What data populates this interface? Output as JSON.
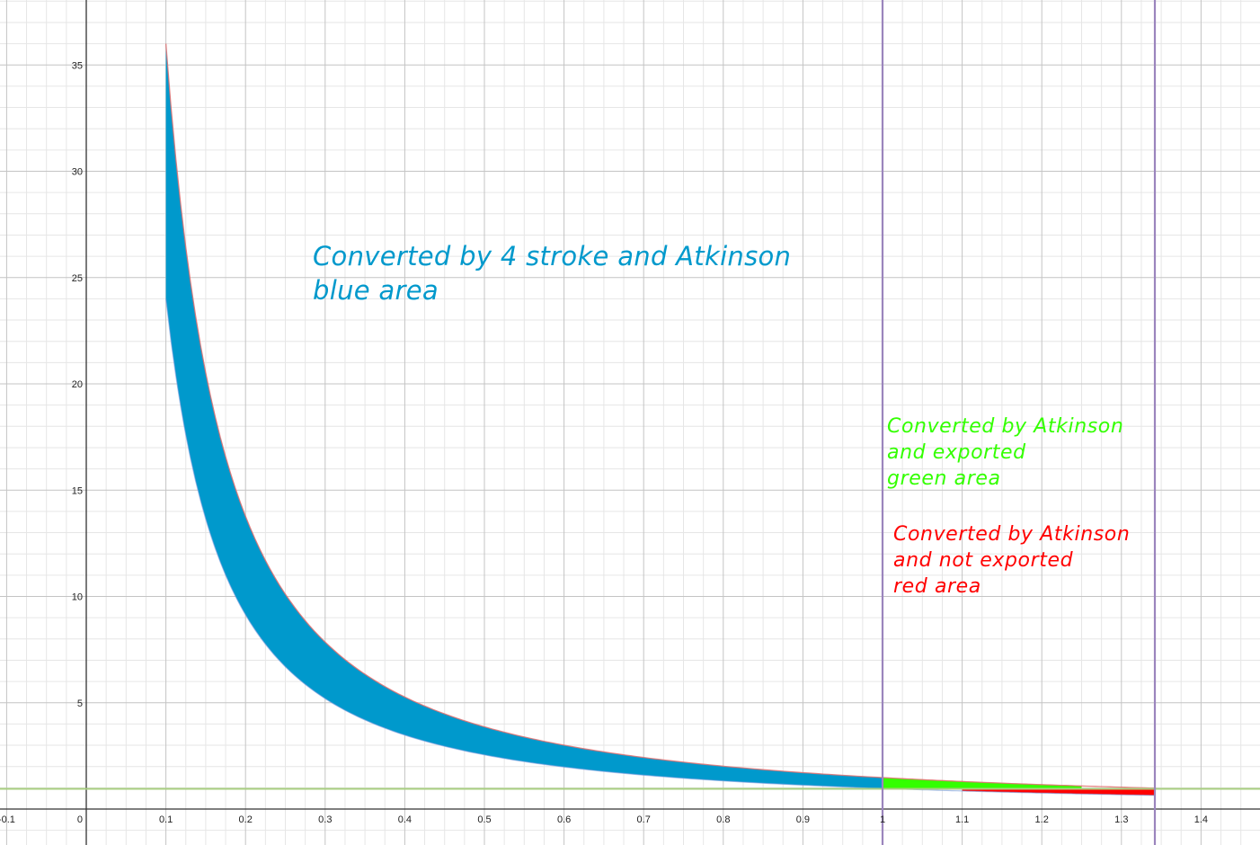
{
  "chart_data": {
    "type": "area",
    "title": "",
    "xlabel": "",
    "ylabel": "",
    "xlim": [
      -0.1,
      1.48
    ],
    "ylim": [
      -1.7,
      38
    ],
    "grid": true,
    "x_ticks": [
      "-0.1",
      "0",
      "0.1",
      "0.2",
      "0.3",
      "0.4",
      "0.5",
      "0.6",
      "0.7",
      "0.8",
      "0.9",
      "1",
      "1.1",
      "1.2",
      "1.3",
      "1.4"
    ],
    "x_tick_values": [
      -0.1,
      0,
      0.1,
      0.2,
      0.3,
      0.4,
      0.5,
      0.6,
      0.7,
      0.8,
      0.9,
      1,
      1.1,
      1.2,
      1.3,
      1.4
    ],
    "y_ticks": [
      "5",
      "10",
      "15",
      "20",
      "25",
      "30",
      "35"
    ],
    "y_tick_values": [
      5,
      10,
      15,
      20,
      25,
      30,
      35
    ],
    "curves": {
      "upper": {
        "description": "upper boundary ~ 1.48 * x^-1.39",
        "color": "#e07070",
        "x": [
          0.1,
          0.2,
          0.3,
          0.4,
          0.5,
          0.6,
          0.7,
          0.8,
          0.9,
          1.0,
          1.1,
          1.2,
          1.3,
          1.342
        ],
        "y": [
          36.0,
          13.8,
          7.9,
          5.3,
          3.9,
          3.0,
          2.42,
          2.01,
          1.71,
          1.48,
          1.3,
          1.15,
          1.03,
          0.98
        ]
      },
      "lower": {
        "description": "lower boundary ~ 0.97 * x^-1.39",
        "color": "#7799dd",
        "x": [
          0.1,
          0.2,
          0.3,
          0.4,
          0.5,
          0.6,
          0.7,
          0.8,
          0.9,
          1.0,
          1.1,
          1.2,
          1.3,
          1.342
        ],
        "y": [
          24.0,
          9.2,
          5.2,
          3.5,
          2.55,
          1.97,
          1.59,
          1.32,
          1.12,
          0.97,
          0.85,
          0.75,
          0.67,
          0.64
        ]
      }
    },
    "horizontal_line": {
      "y": 0.95,
      "color": "#a8cf80"
    },
    "vertical_lines": [
      {
        "x": 1.0,
        "color": "#9b85bd"
      },
      {
        "x": 1.342,
        "color": "#9b85bd"
      }
    ],
    "series": [
      {
        "name": "blue area",
        "color": "#0099cc",
        "x_range": [
          0.1,
          1.0
        ],
        "label": "Converted by 4 stroke and Atkinson blue area"
      },
      {
        "name": "green area",
        "color": "#33ff00",
        "x_range": [
          1.0,
          1.25
        ],
        "label": "Converted by Atkinson and exported green area"
      },
      {
        "name": "red area",
        "color": "#ff0000",
        "x_range": [
          1.1,
          1.342
        ],
        "label": "Converted by Atkinson and not exported red area"
      }
    ],
    "annotations": [
      {
        "text": "Converted by 4 stroke and Atkinson\nblue area",
        "color": "#0099cc"
      },
      {
        "text": "Converted by Atkinson\nand exported\ngreen area",
        "color": "#33ff00"
      },
      {
        "text": "Converted by Atkinson\nand not exported\nred area",
        "color": "#ff0000"
      }
    ]
  },
  "annotations": {
    "blue": "Converted by 4 stroke and Atkinson\nblue area",
    "green": "Converted by Atkinson\nand exported\ngreen area",
    "red": "Converted by Atkinson\nand not exported\nred area"
  }
}
